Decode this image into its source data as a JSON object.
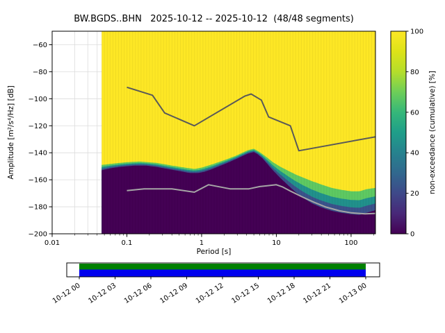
{
  "chart_data": {
    "type": "heatmap",
    "title": "BW.BGDS..BHN   2025-10-12 -- 2025-10-12  (48/48 segments)",
    "xlabel": "Period [s]",
    "ylabel": "Amplitude [m²/s⁴/Hz] [dB]",
    "colorbar_label": "non-exceedance (cumulative) [%]",
    "x_scale": "log",
    "xlim": [
      0.01,
      212
    ],
    "ylim": [
      -200,
      -50
    ],
    "x_ticks": [
      0.01,
      0.1,
      1,
      10,
      100
    ],
    "x_tick_labels": [
      "0.01",
      "0.1",
      "1",
      "10",
      "100"
    ],
    "y_ticks": [
      -60,
      -80,
      -100,
      -120,
      -140,
      -160,
      -180,
      -200
    ],
    "y_tick_labels": [
      "−60",
      "−80",
      "−100",
      "−120",
      "−140",
      "−160",
      "−180",
      "−200"
    ],
    "colorbar_ticks": [
      0,
      20,
      40,
      60,
      80,
      100
    ],
    "colorbar_tick_labels": [
      "0",
      "20",
      "40",
      "60",
      "80",
      "100"
    ],
    "grid": true,
    "legend": false,
    "data_period_range": [
      0.046,
      212
    ],
    "colormap": {
      "name": "viridis",
      "stops": [
        [
          0.0,
          "#440154"
        ],
        [
          0.1,
          "#482878"
        ],
        [
          0.2,
          "#3e4989"
        ],
        [
          0.3,
          "#31688e"
        ],
        [
          0.4,
          "#26828e"
        ],
        [
          0.5,
          "#1f9e89"
        ],
        [
          0.6,
          "#35b779"
        ],
        [
          0.7,
          "#6ece58"
        ],
        [
          0.8,
          "#b5de2b"
        ],
        [
          0.9,
          "#dde318"
        ],
        [
          1.0,
          "#fde725"
        ]
      ]
    },
    "colors": {
      "background": "#ffffff",
      "hist_max": "#fde725",
      "hist_min": "#440154",
      "band_blue": "#3b528b",
      "band_teal": "#21918c",
      "band_green": "#5ec962",
      "noise_model_high": "#595959",
      "noise_model_low": "#a6a6a6",
      "availability_green": "#008000",
      "availability_blue": "#0000ee"
    },
    "mode_curve": {
      "periods": [
        0.046,
        0.06,
        0.08,
        0.1,
        0.13,
        0.18,
        0.25,
        0.35,
        0.5,
        0.7,
        0.9,
        1.1,
        1.4,
        1.8,
        2.2,
        2.8,
        3.5,
        4.2,
        5.0,
        5.6,
        6.5,
        7.5,
        9,
        11,
        14,
        18,
        23,
        30,
        40,
        55,
        75,
        100,
        130,
        160,
        212
      ],
      "db": [
        -153,
        -151.5,
        -150.5,
        -150,
        -149.5,
        -149.5,
        -150.5,
        -152,
        -153.5,
        -155,
        -155,
        -154,
        -152,
        -149.5,
        -147.5,
        -145,
        -142.5,
        -140.5,
        -139.5,
        -141,
        -144,
        -148,
        -153,
        -158,
        -163.5,
        -169,
        -173.5,
        -177.5,
        -180.5,
        -183,
        -184.5,
        -185.5,
        -186,
        -184.5,
        -182.5
      ]
    },
    "upper_curve": {
      "periods": [
        0.046,
        0.08,
        0.1,
        0.15,
        0.25,
        0.4,
        0.6,
        0.8,
        1.0,
        1.4,
        2,
        2.8,
        3.5,
        4.2,
        5,
        6,
        7.5,
        9,
        11,
        14,
        18,
        23,
        30,
        40,
        55,
        75,
        100,
        130,
        160,
        212
      ],
      "db": [
        -149,
        -147.5,
        -147,
        -146.5,
        -147.5,
        -149.5,
        -151,
        -152,
        -151,
        -148.5,
        -145.5,
        -142.5,
        -140,
        -138,
        -137,
        -139.5,
        -143.5,
        -147,
        -150,
        -153,
        -156,
        -158.5,
        -161,
        -163.5,
        -166,
        -167.5,
        -168.5,
        -168.5,
        -167,
        -166
      ]
    },
    "noise_models": {
      "high": {
        "periods": [
          0.1,
          0.22,
          0.32,
          0.8,
          3.8,
          4.6,
          6.3,
          7.9,
          15.4,
          20.0,
          212
        ],
        "db": [
          -91.5,
          -97.4,
          -110.5,
          -120.0,
          -98.0,
          -96.5,
          -101.0,
          -113.5,
          -120.0,
          -138.5,
          -128.2
        ]
      },
      "low": {
        "periods": [
          0.1,
          0.17,
          0.4,
          0.8,
          1.24,
          2.4,
          4.3,
          6.0,
          10.0,
          12.0,
          15.6,
          21.9,
          31.6,
          45.0,
          70.0,
          101.0,
          154.0,
          212
        ],
        "db": [
          -168.0,
          -166.7,
          -166.7,
          -169.2,
          -163.7,
          -166.7,
          -166.7,
          -165.0,
          -163.7,
          -165.2,
          -168.5,
          -172.5,
          -176.5,
          -180.0,
          -183.0,
          -184.5,
          -185.2,
          -184.9
        ]
      }
    },
    "availability": {
      "tick_labels": [
        "10-12 00",
        "10-12 03",
        "10-12 06",
        "10-12 09",
        "10-12 12",
        "10-12 15",
        "10-12 18",
        "10-12 21",
        "10-13 00"
      ]
    }
  }
}
